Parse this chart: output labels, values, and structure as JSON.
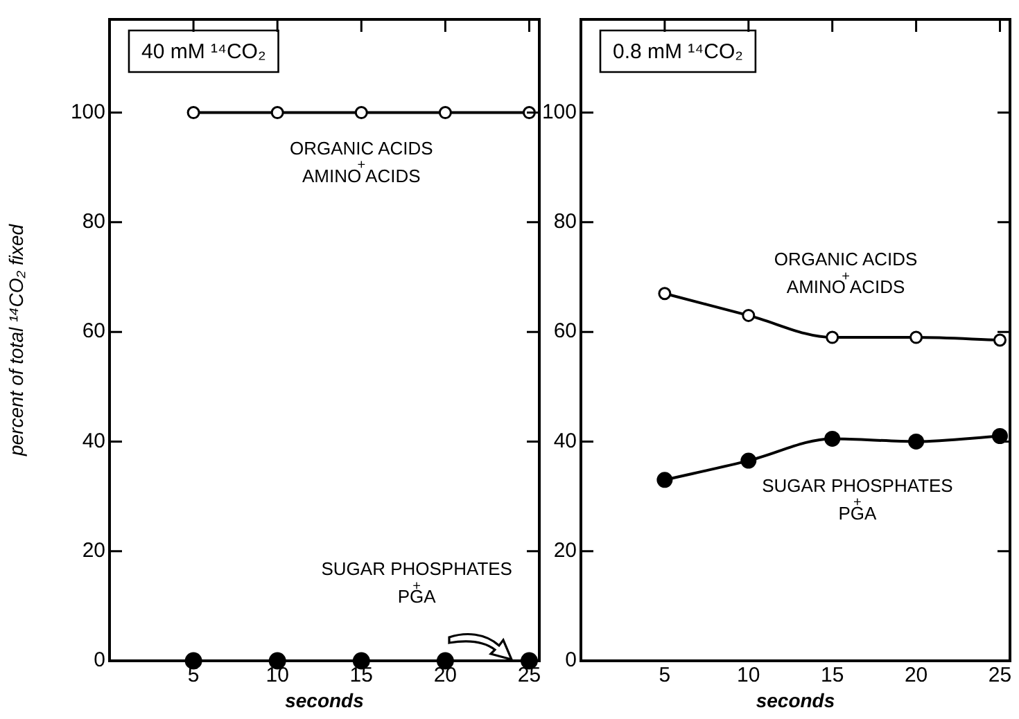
{
  "chart_data": [
    {
      "type": "line",
      "title": "40 mM ¹⁴CO₂",
      "xlabel": "seconds",
      "ylabel": "percent of total ¹⁴CO₂ fixed",
      "x": [
        5,
        10,
        15,
        20,
        25
      ],
      "xlim": [
        0,
        25.6
      ],
      "xticks": [
        5,
        10,
        15,
        20,
        25
      ],
      "ylim": [
        0,
        117
      ],
      "yticks": [
        0,
        20,
        40,
        60,
        80,
        100
      ],
      "grid": false,
      "legend": false,
      "marker": "circle",
      "line_style": "solid",
      "series": [
        {
          "name": "ORGANIC ACIDS + AMINO ACIDS",
          "color": "#000000",
          "values": [
            100,
            100,
            100,
            100,
            100
          ]
        },
        {
          "name": "SUGAR PHOSPHATES + PGA",
          "type": "scatter",
          "color": "#000000",
          "values": [
            0,
            0,
            0,
            0,
            0
          ]
        }
      ]
    },
    {
      "type": "line",
      "title": "0.8 mM ¹⁴CO₂",
      "xlabel": "seconds",
      "x": [
        5,
        10,
        15,
        20,
        25
      ],
      "xlim": [
        0,
        25.6
      ],
      "xticks": [
        5,
        10,
        15,
        20,
        25
      ],
      "ylim": [
        0,
        117
      ],
      "yticks": [
        0,
        20,
        40,
        60,
        80,
        100
      ],
      "grid": false,
      "legend": false,
      "marker": "circle",
      "line_style": "solid",
      "series": [
        {
          "name": "ORGANIC ACIDS + AMINO ACIDS",
          "color": "#000000",
          "values": [
            67,
            63,
            59,
            59,
            58.5
          ]
        },
        {
          "name": "SUGAR PHOSPHATES + PGA",
          "color": "#000000",
          "values": [
            33,
            36.5,
            40.5,
            40,
            41
          ]
        }
      ]
    }
  ]
}
